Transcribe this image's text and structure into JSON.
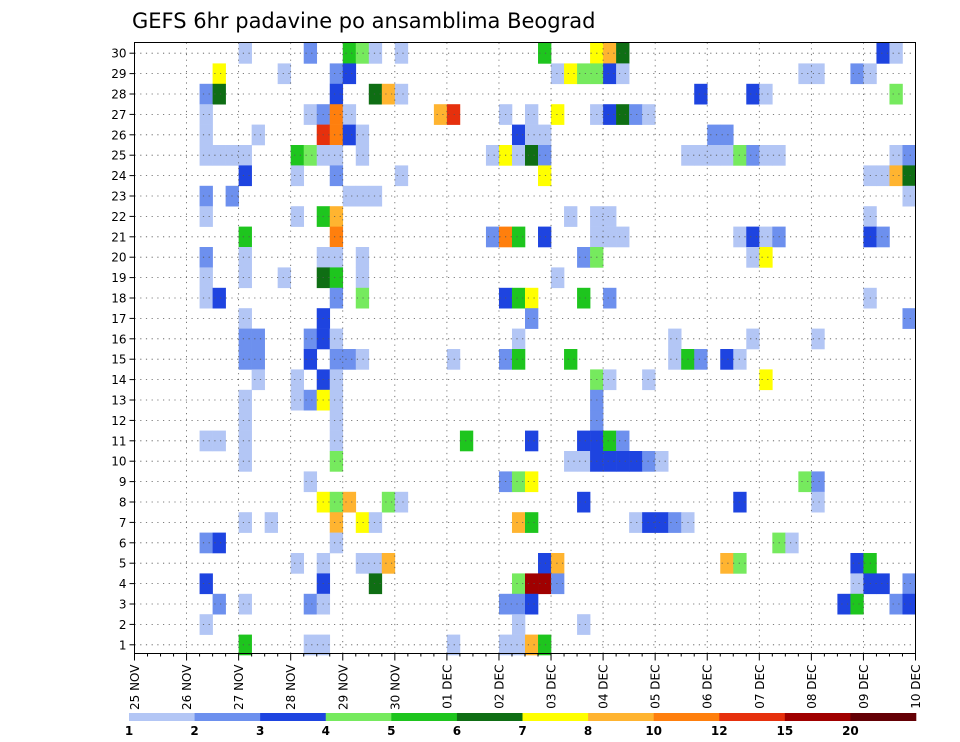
{
  "chart_data": {
    "type": "heatmap",
    "title": "GEFS 6hr padavine po ansamblima Beograd",
    "xlabel": "",
    "ylabel": "",
    "x_ticks": [
      "25 NOV",
      "26 NOV",
      "27 NOV",
      "28 NOV",
      "29 NOV",
      "30 NOV",
      "01 DEC",
      "02 DEC",
      "03 DEC",
      "04 DEC",
      "05 DEC",
      "06 DEC",
      "07 DEC",
      "08 DEC",
      "09 DEC",
      "10 DEC"
    ],
    "y_ticks": [
      1,
      2,
      3,
      4,
      5,
      6,
      7,
      8,
      9,
      10,
      11,
      12,
      13,
      14,
      15,
      16,
      17,
      18,
      19,
      20,
      21,
      22,
      23,
      24,
      25,
      26,
      27,
      28,
      29,
      30
    ],
    "x_steps_per_day": 4,
    "x_steps_total": 60,
    "grid": true,
    "colorbar": {
      "placement": "bottom",
      "labels": [
        "1",
        "2",
        "3",
        "4",
        "5",
        "6",
        "7",
        "8",
        "10",
        "12",
        "15",
        "20"
      ],
      "colors": [
        "#b3c6f5",
        "#6d90ee",
        "#1e44e0",
        "#76ea5e",
        "#1ec51e",
        "#0f6e14",
        "#ffff00",
        "#ffb430",
        "#ff7f0d",
        "#e6300d",
        "#a00000",
        "#640005"
      ]
    },
    "cells": [
      [
        30,
        8,
        1
      ],
      [
        30,
        13,
        2
      ],
      [
        30,
        16,
        5
      ],
      [
        30,
        17,
        4
      ],
      [
        30,
        18,
        1
      ],
      [
        30,
        20,
        1
      ],
      [
        30,
        31,
        5
      ],
      [
        30,
        35,
        7
      ],
      [
        30,
        36,
        8
      ],
      [
        30,
        37,
        6
      ],
      [
        30,
        57,
        3
      ],
      [
        30,
        58,
        1
      ],
      [
        29,
        6,
        7
      ],
      [
        29,
        11,
        1
      ],
      [
        29,
        15,
        2
      ],
      [
        29,
        16,
        3
      ],
      [
        29,
        32,
        1
      ],
      [
        29,
        33,
        7
      ],
      [
        29,
        34,
        4
      ],
      [
        29,
        35,
        4
      ],
      [
        29,
        36,
        3
      ],
      [
        29,
        37,
        1
      ],
      [
        29,
        51,
        1
      ],
      [
        29,
        52,
        1
      ],
      [
        29,
        55,
        2
      ],
      [
        29,
        56,
        1
      ],
      [
        28,
        5,
        2
      ],
      [
        28,
        6,
        6
      ],
      [
        28,
        15,
        3
      ],
      [
        28,
        18,
        6
      ],
      [
        28,
        19,
        8
      ],
      [
        28,
        20,
        1
      ],
      [
        28,
        43,
        3
      ],
      [
        28,
        47,
        3
      ],
      [
        28,
        48,
        1
      ],
      [
        28,
        58,
        4
      ],
      [
        27,
        5,
        1
      ],
      [
        27,
        13,
        1
      ],
      [
        27,
        14,
        2
      ],
      [
        27,
        15,
        9
      ],
      [
        27,
        16,
        1
      ],
      [
        27,
        23,
        8
      ],
      [
        27,
        24,
        10
      ],
      [
        27,
        28,
        1
      ],
      [
        27,
        30,
        1
      ],
      [
        27,
        32,
        7
      ],
      [
        27,
        35,
        1
      ],
      [
        27,
        36,
        3
      ],
      [
        27,
        37,
        6
      ],
      [
        27,
        38,
        2
      ],
      [
        27,
        39,
        1
      ],
      [
        26,
        5,
        1
      ],
      [
        26,
        9,
        1
      ],
      [
        26,
        14,
        10
      ],
      [
        26,
        15,
        9
      ],
      [
        26,
        16,
        3
      ],
      [
        26,
        17,
        1
      ],
      [
        26,
        29,
        3
      ],
      [
        26,
        30,
        1
      ],
      [
        26,
        31,
        1
      ],
      [
        26,
        44,
        2
      ],
      [
        26,
        45,
        2
      ],
      [
        25,
        5,
        1
      ],
      [
        25,
        6,
        1
      ],
      [
        25,
        7,
        1
      ],
      [
        25,
        8,
        1
      ],
      [
        25,
        12,
        5
      ],
      [
        25,
        13,
        4
      ],
      [
        25,
        14,
        1
      ],
      [
        25,
        15,
        1
      ],
      [
        25,
        17,
        1
      ],
      [
        25,
        27,
        1
      ],
      [
        25,
        28,
        7
      ],
      [
        25,
        29,
        1
      ],
      [
        25,
        30,
        6
      ],
      [
        25,
        31,
        2
      ],
      [
        25,
        42,
        1
      ],
      [
        25,
        43,
        1
      ],
      [
        25,
        44,
        1
      ],
      [
        25,
        45,
        1
      ],
      [
        25,
        46,
        4
      ],
      [
        25,
        47,
        2
      ],
      [
        25,
        48,
        1
      ],
      [
        25,
        49,
        1
      ],
      [
        25,
        58,
        1
      ],
      [
        25,
        59,
        2
      ],
      [
        24,
        8,
        3
      ],
      [
        24,
        12,
        1
      ],
      [
        24,
        15,
        2
      ],
      [
        24,
        20,
        1
      ],
      [
        24,
        31,
        7
      ],
      [
        24,
        56,
        1
      ],
      [
        24,
        57,
        1
      ],
      [
        24,
        58,
        8
      ],
      [
        24,
        59,
        6
      ],
      [
        23,
        5,
        2
      ],
      [
        23,
        7,
        2
      ],
      [
        23,
        16,
        1
      ],
      [
        23,
        17,
        1
      ],
      [
        23,
        18,
        1
      ],
      [
        23,
        59,
        1
      ],
      [
        22,
        5,
        1
      ],
      [
        22,
        12,
        1
      ],
      [
        22,
        14,
        5
      ],
      [
        22,
        15,
        8
      ],
      [
        22,
        33,
        1
      ],
      [
        22,
        35,
        1
      ],
      [
        22,
        36,
        1
      ],
      [
        22,
        56,
        1
      ],
      [
        21,
        8,
        5
      ],
      [
        21,
        15,
        9
      ],
      [
        21,
        27,
        2
      ],
      [
        21,
        28,
        9
      ],
      [
        21,
        29,
        5
      ],
      [
        21,
        31,
        3
      ],
      [
        21,
        35,
        1
      ],
      [
        21,
        36,
        1
      ],
      [
        21,
        37,
        1
      ],
      [
        21,
        46,
        1
      ],
      [
        21,
        47,
        3
      ],
      [
        21,
        48,
        1
      ],
      [
        21,
        49,
        2
      ],
      [
        21,
        56,
        3
      ],
      [
        21,
        57,
        2
      ],
      [
        20,
        5,
        2
      ],
      [
        20,
        8,
        1
      ],
      [
        20,
        14,
        1
      ],
      [
        20,
        15,
        1
      ],
      [
        20,
        17,
        1
      ],
      [
        20,
        34,
        2
      ],
      [
        20,
        35,
        4
      ],
      [
        20,
        47,
        1
      ],
      [
        20,
        48,
        7
      ],
      [
        19,
        5,
        1
      ],
      [
        19,
        8,
        1
      ],
      [
        19,
        11,
        1
      ],
      [
        19,
        14,
        6
      ],
      [
        19,
        15,
        5
      ],
      [
        19,
        17,
        1
      ],
      [
        19,
        32,
        1
      ],
      [
        18,
        5,
        1
      ],
      [
        18,
        6,
        3
      ],
      [
        18,
        15,
        2
      ],
      [
        18,
        17,
        4
      ],
      [
        18,
        28,
        3
      ],
      [
        18,
        29,
        5
      ],
      [
        18,
        30,
        7
      ],
      [
        18,
        34,
        5
      ],
      [
        18,
        36,
        2
      ],
      [
        18,
        56,
        1
      ],
      [
        17,
        8,
        1
      ],
      [
        17,
        14,
        3
      ],
      [
        17,
        30,
        2
      ],
      [
        17,
        59,
        2
      ],
      [
        16,
        8,
        2
      ],
      [
        16,
        9,
        2
      ],
      [
        16,
        13,
        2
      ],
      [
        16,
        14,
        3
      ],
      [
        16,
        15,
        1
      ],
      [
        16,
        29,
        1
      ],
      [
        16,
        41,
        1
      ],
      [
        16,
        47,
        1
      ],
      [
        16,
        52,
        1
      ],
      [
        15,
        8,
        2
      ],
      [
        15,
        9,
        2
      ],
      [
        15,
        13,
        3
      ],
      [
        15,
        15,
        2
      ],
      [
        15,
        16,
        2
      ],
      [
        15,
        17,
        1
      ],
      [
        15,
        24,
        1
      ],
      [
        15,
        28,
        2
      ],
      [
        15,
        29,
        5
      ],
      [
        15,
        33,
        5
      ],
      [
        15,
        41,
        1
      ],
      [
        15,
        42,
        5
      ],
      [
        15,
        43,
        2
      ],
      [
        15,
        45,
        3
      ],
      [
        15,
        46,
        1
      ],
      [
        14,
        9,
        1
      ],
      [
        14,
        12,
        1
      ],
      [
        14,
        14,
        3
      ],
      [
        14,
        15,
        1
      ],
      [
        14,
        35,
        4
      ],
      [
        14,
        36,
        1
      ],
      [
        14,
        39,
        1
      ],
      [
        14,
        48,
        7
      ],
      [
        13,
        8,
        1
      ],
      [
        13,
        12,
        1
      ],
      [
        13,
        13,
        2
      ],
      [
        13,
        14,
        7
      ],
      [
        13,
        15,
        1
      ],
      [
        13,
        35,
        2
      ],
      [
        12,
        8,
        1
      ],
      [
        12,
        15,
        1
      ],
      [
        12,
        35,
        2
      ],
      [
        11,
        5,
        1
      ],
      [
        11,
        6,
        1
      ],
      [
        11,
        8,
        1
      ],
      [
        11,
        15,
        1
      ],
      [
        11,
        25,
        5
      ],
      [
        11,
        30,
        3
      ],
      [
        11,
        34,
        3
      ],
      [
        11,
        35,
        3
      ],
      [
        11,
        36,
        5
      ],
      [
        11,
        37,
        2
      ],
      [
        10,
        8,
        1
      ],
      [
        10,
        15,
        4
      ],
      [
        10,
        33,
        1
      ],
      [
        10,
        34,
        1
      ],
      [
        10,
        35,
        3
      ],
      [
        10,
        36,
        3
      ],
      [
        10,
        37,
        3
      ],
      [
        10,
        38,
        3
      ],
      [
        10,
        39,
        2
      ],
      [
        10,
        40,
        1
      ],
      [
        9,
        13,
        1
      ],
      [
        9,
        28,
        2
      ],
      [
        9,
        29,
        4
      ],
      [
        9,
        30,
        7
      ],
      [
        9,
        51,
        4
      ],
      [
        9,
        52,
        2
      ],
      [
        8,
        14,
        7
      ],
      [
        8,
        15,
        4
      ],
      [
        8,
        16,
        8
      ],
      [
        8,
        19,
        4
      ],
      [
        8,
        20,
        1
      ],
      [
        8,
        34,
        3
      ],
      [
        8,
        46,
        3
      ],
      [
        8,
        52,
        1
      ],
      [
        7,
        8,
        1
      ],
      [
        7,
        10,
        1
      ],
      [
        7,
        15,
        8
      ],
      [
        7,
        17,
        7
      ],
      [
        7,
        18,
        1
      ],
      [
        7,
        29,
        8
      ],
      [
        7,
        30,
        5
      ],
      [
        7,
        38,
        1
      ],
      [
        7,
        39,
        3
      ],
      [
        7,
        40,
        3
      ],
      [
        7,
        41,
        2
      ],
      [
        7,
        42,
        1
      ],
      [
        6,
        5,
        2
      ],
      [
        6,
        6,
        3
      ],
      [
        6,
        15,
        1
      ],
      [
        6,
        49,
        4
      ],
      [
        6,
        50,
        1
      ],
      [
        5,
        12,
        1
      ],
      [
        5,
        14,
        1
      ],
      [
        5,
        17,
        1
      ],
      [
        5,
        18,
        1
      ],
      [
        5,
        19,
        8
      ],
      [
        5,
        31,
        3
      ],
      [
        5,
        32,
        8
      ],
      [
        5,
        45,
        8
      ],
      [
        5,
        46,
        4
      ],
      [
        5,
        55,
        3
      ],
      [
        5,
        56,
        5
      ],
      [
        4,
        5,
        3
      ],
      [
        4,
        14,
        3
      ],
      [
        4,
        18,
        6
      ],
      [
        4,
        29,
        4
      ],
      [
        4,
        30,
        11
      ],
      [
        4,
        31,
        11
      ],
      [
        4,
        32,
        2
      ],
      [
        4,
        55,
        1
      ],
      [
        4,
        56,
        3
      ],
      [
        4,
        57,
        3
      ],
      [
        4,
        59,
        2
      ],
      [
        3,
        6,
        2
      ],
      [
        3,
        8,
        1
      ],
      [
        3,
        13,
        2
      ],
      [
        3,
        14,
        1
      ],
      [
        3,
        28,
        2
      ],
      [
        3,
        29,
        2
      ],
      [
        3,
        30,
        3
      ],
      [
        3,
        54,
        3
      ],
      [
        3,
        55,
        5
      ],
      [
        3,
        58,
        2
      ],
      [
        3,
        59,
        3
      ],
      [
        2,
        5,
        1
      ],
      [
        2,
        29,
        1
      ],
      [
        2,
        34,
        1
      ],
      [
        1,
        5,
        2
      ],
      [
        1,
        6,
        1
      ],
      [
        1,
        10,
        1
      ],
      [
        1,
        14,
        3
      ],
      [
        1,
        15,
        1
      ],
      [
        1,
        29,
        1
      ],
      [
        1,
        30,
        7
      ],
      [
        1,
        31,
        6
      ],
      [
        1,
        45,
        2
      ]
    ],
    "cells_row1_extra": [
      [
        1,
        8,
        5
      ],
      [
        1,
        13,
        1
      ],
      [
        1,
        14,
        1
      ],
      [
        1,
        24,
        1
      ],
      [
        1,
        28,
        1
      ],
      [
        1,
        29,
        1
      ],
      [
        1,
        30,
        8
      ],
      [
        1,
        31,
        5
      ]
    ]
  }
}
